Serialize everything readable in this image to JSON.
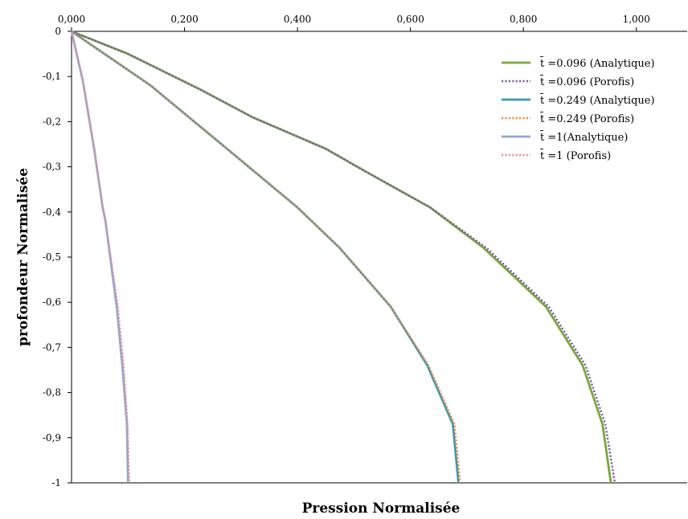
{
  "chart_data": {
    "type": "line",
    "title": "",
    "xlabel": "Pression Normalisée",
    "ylabel": "profondeur Normalisée",
    "xlim": [
      0,
      1.09
    ],
    "ylim": [
      -1,
      0
    ],
    "x_ticks": [
      "0,000",
      "0,200",
      "0,400",
      "0,600",
      "0,800",
      "1,000"
    ],
    "x_tick_values": [
      0,
      0.2,
      0.4,
      0.6,
      0.8,
      1.0
    ],
    "y_ticks": [
      "0",
      "-0,1",
      "-0,2",
      "-0,3",
      "-0,4",
      "-0,5",
      "-0,6",
      "-0,7",
      "-0,8",
      "-0,9",
      "-1"
    ],
    "y_tick_values": [
      0,
      -0.1,
      -0.2,
      -0.3,
      -0.4,
      -0.5,
      -0.6,
      -0.7,
      -0.8,
      -0.9,
      -1
    ],
    "x_axis_position": "top",
    "grid": false,
    "legend_position": "top-right",
    "series": [
      {
        "name": "t̄ =0.096 (Analytique)",
        "color": "#77a83a",
        "style": "solid",
        "points": [
          [
            0,
            0
          ],
          [
            0.1,
            -0.05
          ],
          [
            0.23,
            -0.13
          ],
          [
            0.32,
            -0.19
          ],
          [
            0.45,
            -0.26
          ],
          [
            0.52,
            -0.31
          ],
          [
            0.635,
            -0.39
          ],
          [
            0.73,
            -0.48
          ],
          [
            0.84,
            -0.61
          ],
          [
            0.905,
            -0.74
          ],
          [
            0.94,
            -0.87
          ],
          [
            0.955,
            -1
          ]
        ]
      },
      {
        "name": "t̄ =0.096 (Porofis)",
        "color": "#7a5aa8",
        "style": "dotted",
        "points": [
          [
            0,
            0
          ],
          [
            0.1,
            -0.05
          ],
          [
            0.23,
            -0.13
          ],
          [
            0.32,
            -0.19
          ],
          [
            0.45,
            -0.26
          ],
          [
            0.52,
            -0.31
          ],
          [
            0.635,
            -0.39
          ],
          [
            0.735,
            -0.48
          ],
          [
            0.845,
            -0.61
          ],
          [
            0.91,
            -0.74
          ],
          [
            0.945,
            -0.87
          ],
          [
            0.962,
            -1
          ]
        ]
      },
      {
        "name": "t̄ =0.249 (Analytique)",
        "color": "#3b9bb0",
        "style": "solid",
        "points": [
          [
            0,
            0
          ],
          [
            0.07,
            -0.06
          ],
          [
            0.14,
            -0.12
          ],
          [
            0.275,
            -0.26
          ],
          [
            0.4,
            -0.39
          ],
          [
            0.475,
            -0.48
          ],
          [
            0.565,
            -0.61
          ],
          [
            0.63,
            -0.74
          ],
          [
            0.675,
            -0.87
          ],
          [
            0.685,
            -1
          ]
        ]
      },
      {
        "name": "t̄ =0.249 (Porofis)",
        "color": "#ef8a3c",
        "style": "dotted",
        "points": [
          [
            0,
            0
          ],
          [
            0.07,
            -0.06
          ],
          [
            0.14,
            -0.12
          ],
          [
            0.275,
            -0.26
          ],
          [
            0.4,
            -0.39
          ],
          [
            0.475,
            -0.48
          ],
          [
            0.565,
            -0.61
          ],
          [
            0.632,
            -0.74
          ],
          [
            0.678,
            -0.87
          ],
          [
            0.688,
            -1
          ]
        ]
      },
      {
        "name": "t̄ =1(Analytique)",
        "color": "#8ea9d6",
        "style": "solid",
        "points": [
          [
            0,
            0
          ],
          [
            0.02,
            -0.11
          ],
          [
            0.04,
            -0.26
          ],
          [
            0.055,
            -0.39
          ],
          [
            0.06,
            -0.42
          ],
          [
            0.08,
            -0.61
          ],
          [
            0.09,
            -0.74
          ],
          [
            0.098,
            -0.87
          ],
          [
            0.1,
            -1
          ]
        ]
      },
      {
        "name": "t̄ =1 (Porofis)",
        "color": "#e58e9a",
        "style": "dotted",
        "points": [
          [
            0,
            0
          ],
          [
            0.02,
            -0.11
          ],
          [
            0.04,
            -0.26
          ],
          [
            0.055,
            -0.39
          ],
          [
            0.06,
            -0.42
          ],
          [
            0.082,
            -0.61
          ],
          [
            0.092,
            -0.74
          ],
          [
            0.099,
            -0.87
          ],
          [
            0.102,
            -1
          ]
        ]
      }
    ]
  }
}
